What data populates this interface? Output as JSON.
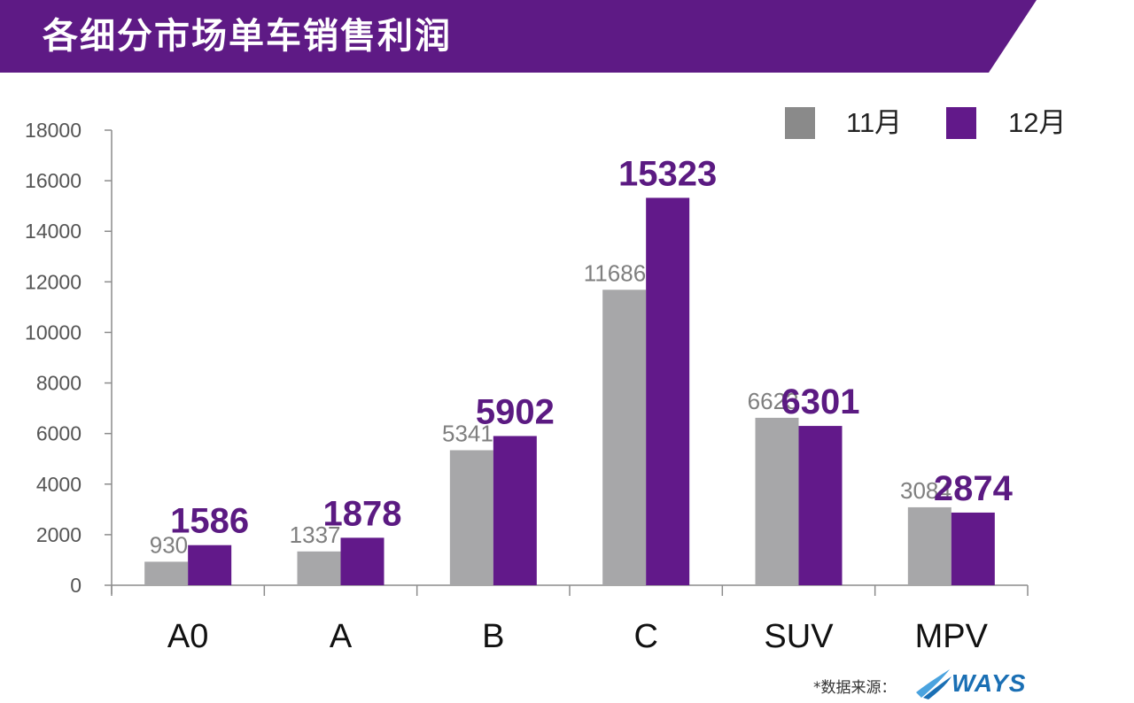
{
  "title": "各细分市场单车销售利润",
  "colors": {
    "banner": "#5e1a85",
    "series_11": "#a7a7a9",
    "series_12": "#62198a",
    "label_11": "#7f7f7f",
    "label_12": "#5b1a82"
  },
  "legend": [
    {
      "label": "11月",
      "color": "#8a8a8a"
    },
    {
      "label": "12月",
      "color": "#62198a"
    }
  ],
  "source": {
    "note": "*数据来源：",
    "logo_text": "WAYS"
  },
  "chart_data": {
    "type": "bar",
    "categories": [
      "A0",
      "A",
      "B",
      "C",
      "SUV",
      "MPV"
    ],
    "series": [
      {
        "name": "11月",
        "values": [
          930,
          1337,
          5341,
          11686,
          6623,
          3084
        ]
      },
      {
        "name": "12月",
        "values": [
          1586,
          1878,
          5902,
          15323,
          6301,
          2874
        ]
      }
    ],
    "ylim": [
      0,
      18000
    ],
    "yticks": [
      0,
      2000,
      4000,
      6000,
      8000,
      10000,
      12000,
      14000,
      16000,
      18000
    ],
    "legend_position": "top-right",
    "grid": false
  }
}
